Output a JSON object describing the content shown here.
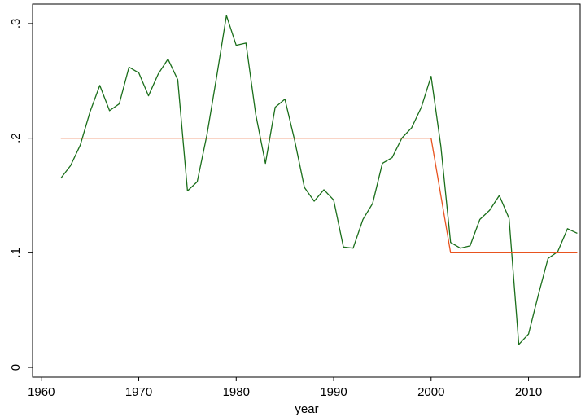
{
  "chart_data": {
    "type": "line",
    "xlabel": "year",
    "xlim": [
      1959.1,
      2015.3
    ],
    "xticks": [
      1960,
      1970,
      1980,
      1990,
      2000,
      2010
    ],
    "ylim": [
      -0.0085,
      0.317
    ],
    "yticks": [
      0,
      {
        "value": 0.1,
        "label": ".1"
      },
      {
        "value": 0.2,
        "label": ".2"
      },
      {
        "value": 0.3,
        "label": ".3"
      }
    ],
    "grid": false,
    "series": [
      {
        "color": "#1a6e1a",
        "x": [
          1962,
          1963,
          1964,
          1965,
          1966,
          1967,
          1968,
          1969,
          1970,
          1971,
          1972,
          1973,
          1974,
          1975,
          1976,
          1977,
          1978,
          1979,
          1980,
          1981,
          1982,
          1983,
          1984,
          1985,
          1986,
          1987,
          1988,
          1989,
          1990,
          1991,
          1992,
          1993,
          1994,
          1995,
          1996,
          1997,
          1998,
          1999,
          2000,
          2001,
          2002,
          2003,
          2004,
          2005,
          2006,
          2007,
          2008,
          2009,
          2010,
          2011,
          2012,
          2013,
          2014,
          2015
        ],
        "values": [
          0.165,
          0.176,
          0.194,
          0.223,
          0.246,
          0.224,
          0.23,
          0.262,
          0.257,
          0.237,
          0.256,
          0.269,
          0.251,
          0.154,
          0.162,
          0.203,
          0.254,
          0.307,
          0.281,
          0.283,
          0.221,
          0.178,
          0.227,
          0.234,
          0.198,
          0.157,
          0.145,
          0.155,
          0.146,
          0.105,
          0.104,
          0.129,
          0.143,
          0.178,
          0.183,
          0.2,
          0.209,
          0.227,
          0.254,
          0.193,
          0.109,
          0.104,
          0.106,
          0.129,
          0.137,
          0.15,
          0.13,
          0.02,
          0.029,
          0.063,
          0.095,
          0.101,
          0.121,
          0.117
        ]
      },
      {
        "color": "#e8531f",
        "x": [
          1962,
          2000,
          2002,
          2015
        ],
        "values": [
          0.2,
          0.2,
          0.1,
          0.1
        ]
      }
    ]
  }
}
